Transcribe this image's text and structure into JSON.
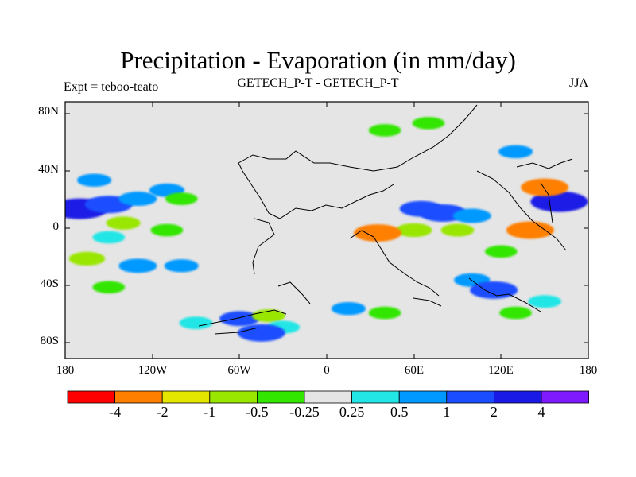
{
  "title": "Precipitation - Evaporation (in mm/day)",
  "left_label": "Expt = teboo-teato",
  "center_label": "GETECH_P-T - GETECH_P-T",
  "right_label": "JJA",
  "y_ticks": [
    "80N",
    "40N",
    "0",
    "40S",
    "80S"
  ],
  "x_ticks": [
    "180",
    "120W",
    "60W",
    "0",
    "60E",
    "120E",
    "180"
  ],
  "colorbar": {
    "colors": [
      "#ff0000",
      "#ff7f00",
      "#e5e600",
      "#99e600",
      "#33e600",
      "#e5e5e5",
      "#22e6e6",
      "#0099ff",
      "#1a4dff",
      "#1a1ae6",
      "#7f1aff"
    ],
    "labels": [
      "-4",
      "-2",
      "-1",
      "-0.5",
      "-0.25",
      "0.25",
      "0.5",
      "1",
      "2",
      "4"
    ]
  },
  "chart_data": {
    "type": "map",
    "projection": "cylindrical-equidistant",
    "lon_range": [
      -180,
      180
    ],
    "lat_range": [
      -90,
      90
    ],
    "levels": [
      -4,
      -2,
      -1,
      -0.5,
      -0.25,
      0.25,
      0.5,
      1,
      2,
      4
    ],
    "units": "mm/day",
    "season": "JJA",
    "patches": [
      {
        "lon": -170,
        "lat": 15,
        "value": 3.0
      },
      {
        "lon": -150,
        "lat": 18,
        "value": 2.0
      },
      {
        "lon": -130,
        "lat": 22,
        "value": 1.0
      },
      {
        "lon": -110,
        "lat": 28,
        "value": 0.7
      },
      {
        "lon": -160,
        "lat": 35,
        "value": 0.6
      },
      {
        "lon": -100,
        "lat": 22,
        "value": -0.4
      },
      {
        "lon": -140,
        "lat": 5,
        "value": -0.6
      },
      {
        "lon": -110,
        "lat": 0,
        "value": -0.4
      },
      {
        "lon": -150,
        "lat": -5,
        "value": 0.4
      },
      {
        "lon": -165,
        "lat": -20,
        "value": -0.8
      },
      {
        "lon": -130,
        "lat": -25,
        "value": 1.0
      },
      {
        "lon": -100,
        "lat": -25,
        "value": 0.6
      },
      {
        "lon": -150,
        "lat": -40,
        "value": -0.4
      },
      {
        "lon": -90,
        "lat": -65,
        "value": 0.5
      },
      {
        "lon": -60,
        "lat": -62,
        "value": 1.2
      },
      {
        "lon": -40,
        "lat": -60,
        "value": -0.5
      },
      {
        "lon": -30,
        "lat": -68,
        "value": 0.5
      },
      {
        "lon": -45,
        "lat": -72,
        "value": 2.0
      },
      {
        "lon": 15,
        "lat": -55,
        "value": 0.6
      },
      {
        "lon": 40,
        "lat": -58,
        "value": -0.4
      },
      {
        "lon": 65,
        "lat": 15,
        "value": 1.5
      },
      {
        "lon": 80,
        "lat": 12,
        "value": 2.0
      },
      {
        "lon": 100,
        "lat": 10,
        "value": 1.0
      },
      {
        "lon": 60,
        "lat": 0,
        "value": -0.8
      },
      {
        "lon": 90,
        "lat": 0,
        "value": -0.5
      },
      {
        "lon": 140,
        "lat": 0,
        "value": -2.0
      },
      {
        "lon": 35,
        "lat": -2,
        "value": -2.0
      },
      {
        "lon": 120,
        "lat": -15,
        "value": -0.4
      },
      {
        "lon": 100,
        "lat": -35,
        "value": 0.8
      },
      {
        "lon": 115,
        "lat": -42,
        "value": 2.0
      },
      {
        "lon": 150,
        "lat": -50,
        "value": 0.5
      },
      {
        "lon": 130,
        "lat": -58,
        "value": -0.4
      },
      {
        "lon": 160,
        "lat": 20,
        "value": 3.0
      },
      {
        "lon": 150,
        "lat": 30,
        "value": -2.0
      },
      {
        "lon": 40,
        "lat": 70,
        "value": -0.4
      },
      {
        "lon": 70,
        "lat": 75,
        "value": -0.4
      },
      {
        "lon": 130,
        "lat": 55,
        "value": 0.6
      }
    ]
  }
}
